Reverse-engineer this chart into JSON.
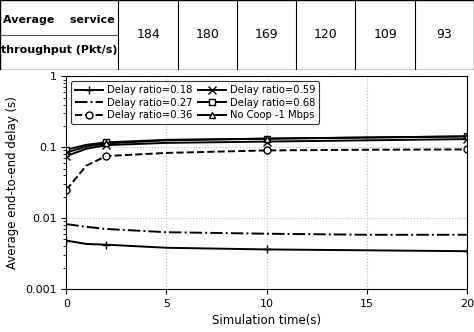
{
  "table_header": [
    "184",
    "180",
    "169",
    "120",
    "109",
    "93"
  ],
  "table_label_line1": "Average    service",
  "table_label_line2": "throughput (Pkt/s)",
  "xlabel": "Simulation time(s)",
  "ylabel": "Average end-to-end delay (s)",
  "xlim": [
    0,
    20
  ],
  "ylim": [
    0.001,
    1
  ],
  "xticks": [
    0,
    5,
    10,
    15,
    20
  ],
  "series": [
    {
      "label": "Delay ratio=0.18",
      "x": [
        0,
        1,
        2,
        5,
        10,
        15,
        20
      ],
      "y": [
        0.0048,
        0.0043,
        0.0042,
        0.0038,
        0.0036,
        0.0035,
        0.0034
      ],
      "linestyle": "-",
      "marker": "+",
      "markersize": 6,
      "markerfacecolor": "black"
    },
    {
      "label": "Delay ratio=0.27",
      "x": [
        0,
        1,
        2,
        5,
        10,
        15,
        20
      ],
      "y": [
        0.0082,
        0.0075,
        0.007,
        0.0063,
        0.006,
        0.0058,
        0.0058
      ],
      "linestyle": "-.",
      "marker": null,
      "markersize": 0,
      "markerfacecolor": "black"
    },
    {
      "label": "Delay ratio=0.36",
      "x": [
        0,
        1,
        2,
        5,
        10,
        15,
        20
      ],
      "y": [
        0.025,
        0.055,
        0.075,
        0.083,
        0.09,
        0.092,
        0.093
      ],
      "linestyle": "--",
      "marker": "o",
      "markersize": 5,
      "markerfacecolor": "white"
    },
    {
      "label": "Delay ratio=0.59",
      "x": [
        0,
        1,
        2,
        5,
        10,
        15,
        20
      ],
      "y": [
        0.075,
        0.095,
        0.107,
        0.115,
        0.12,
        0.125,
        0.13
      ],
      "linestyle": "-",
      "marker": "x",
      "markersize": 6,
      "markerfacecolor": "black"
    },
    {
      "label": "Delay ratio=0.68",
      "x": [
        0,
        1,
        2,
        5,
        10,
        15,
        20
      ],
      "y": [
        0.092,
        0.108,
        0.117,
        0.127,
        0.132,
        0.137,
        0.142
      ],
      "linestyle": "-",
      "marker": "s",
      "markersize": 5,
      "markerfacecolor": "white"
    },
    {
      "label": "No Coop -1 Mbps",
      "x": [
        0,
        1,
        2,
        5,
        10,
        15,
        20
      ],
      "y": [
        0.084,
        0.102,
        0.113,
        0.125,
        0.132,
        0.137,
        0.142
      ],
      "linestyle": "-",
      "marker": "^",
      "markersize": 5,
      "markerfacecolor": "white"
    }
  ],
  "grid_color": "#bbbbbb",
  "background_color": "#ffffff",
  "legend_fontsize": 7.2,
  "axis_fontsize": 8.5,
  "tick_fontsize": 8
}
